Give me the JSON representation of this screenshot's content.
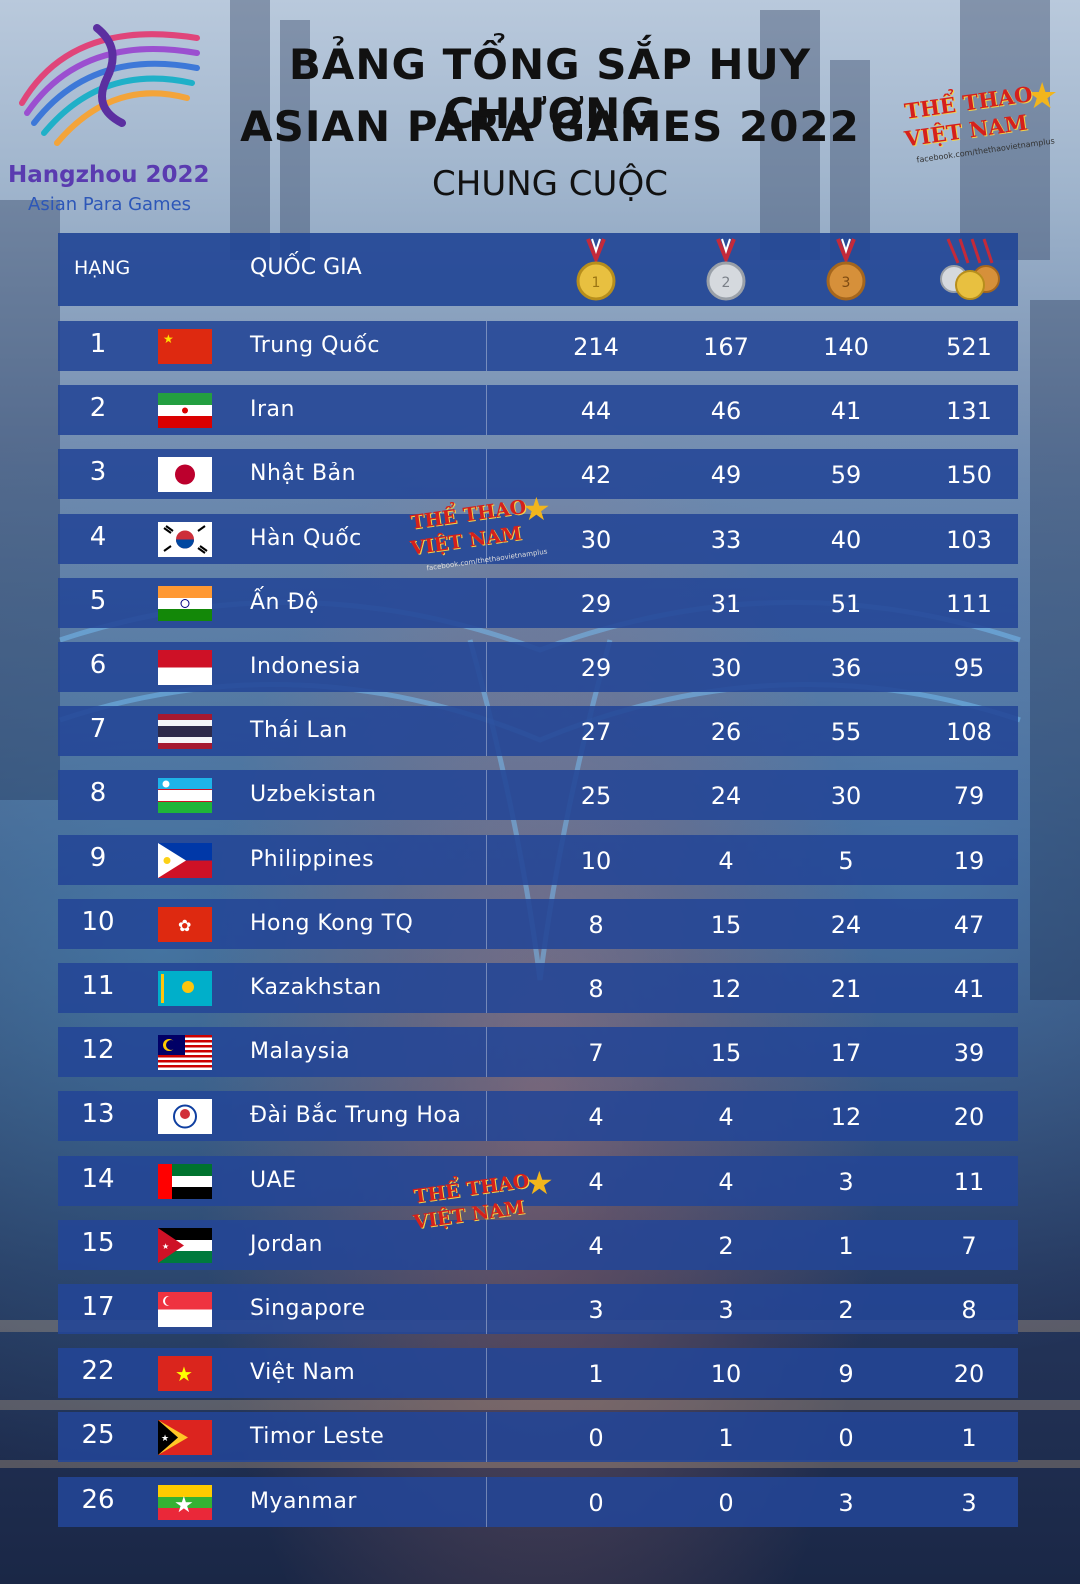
{
  "title": {
    "line1": "BẢNG TỔNG SẮP HUY CHƯƠNG",
    "line2": "ASIAN PARA GAMES 2022",
    "line3": "CHUNG CUỘC"
  },
  "logo": {
    "line1": "Hangzhou 2022",
    "line2": "Asian Para Games"
  },
  "brand": {
    "line1": "THỂ THAO",
    "line2": "VIỆT NAM",
    "line3": "facebook.com/thethaovietnamplus"
  },
  "table": {
    "headers": {
      "rank": "HẠNG",
      "country": "QUỐC GIA",
      "gold_icon": "gold-medal-icon",
      "silver_icon": "silver-medal-icon",
      "bronze_icon": "bronze-medal-icon",
      "total_icon": "all-medals-icon"
    },
    "rows": [
      {
        "rank": "1",
        "country": "Trung Quốc",
        "flag": "china-flag-icon",
        "gold": "214",
        "silver": "167",
        "bronze": "140",
        "total": "521"
      },
      {
        "rank": "2",
        "country": "Iran",
        "flag": "iran-flag-icon",
        "gold": "44",
        "silver": "46",
        "bronze": "41",
        "total": "131"
      },
      {
        "rank": "3",
        "country": "Nhật Bản",
        "flag": "japan-flag-icon",
        "gold": "42",
        "silver": "49",
        "bronze": "59",
        "total": "150"
      },
      {
        "rank": "4",
        "country": "Hàn Quốc",
        "flag": "korea-flag-icon",
        "gold": "30",
        "silver": "33",
        "bronze": "40",
        "total": "103"
      },
      {
        "rank": "5",
        "country": "Ấn Độ",
        "flag": "india-flag-icon",
        "gold": "29",
        "silver": "31",
        "bronze": "51",
        "total": "111"
      },
      {
        "rank": "6",
        "country": "Indonesia",
        "flag": "indonesia-flag-icon",
        "gold": "29",
        "silver": "30",
        "bronze": "36",
        "total": "95"
      },
      {
        "rank": "7",
        "country": "Thái Lan",
        "flag": "thailand-flag-icon",
        "gold": "27",
        "silver": "26",
        "bronze": "55",
        "total": "108"
      },
      {
        "rank": "8",
        "country": "Uzbekistan",
        "flag": "uzbekistan-flag-icon",
        "gold": "25",
        "silver": "24",
        "bronze": "30",
        "total": "79"
      },
      {
        "rank": "9",
        "country": "Philippines",
        "flag": "philippines-flag-icon",
        "gold": "10",
        "silver": "4",
        "bronze": "5",
        "total": "19"
      },
      {
        "rank": "10",
        "country": "Hong Kong TQ",
        "flag": "hongkong-flag-icon",
        "gold": "8",
        "silver": "15",
        "bronze": "24",
        "total": "47"
      },
      {
        "rank": "11",
        "country": "Kazakhstan",
        "flag": "kazakhstan-flag-icon",
        "gold": "8",
        "silver": "12",
        "bronze": "21",
        "total": "41"
      },
      {
        "rank": "12",
        "country": "Malaysia",
        "flag": "malaysia-flag-icon",
        "gold": "7",
        "silver": "15",
        "bronze": "17",
        "total": "39"
      },
      {
        "rank": "13",
        "country": "Đài Bắc Trung Hoa",
        "flag": "chinese-taipei-flag-icon",
        "gold": "4",
        "silver": "4",
        "bronze": "12",
        "total": "20"
      },
      {
        "rank": "14",
        "country": "UAE",
        "flag": "uae-flag-icon",
        "gold": "4",
        "silver": "4",
        "bronze": "3",
        "total": "11"
      },
      {
        "rank": "15",
        "country": "Jordan",
        "flag": "jordan-flag-icon",
        "gold": "4",
        "silver": "2",
        "bronze": "1",
        "total": "7"
      },
      {
        "rank": "17",
        "country": "Singapore",
        "flag": "singapore-flag-icon",
        "gold": "3",
        "silver": "3",
        "bronze": "2",
        "total": "8"
      },
      {
        "rank": "22",
        "country": "Việt Nam",
        "flag": "vietnam-flag-icon",
        "gold": "1",
        "silver": "10",
        "bronze": "9",
        "total": "20"
      },
      {
        "rank": "25",
        "country": "Timor Leste",
        "flag": "timor-leste-flag-icon",
        "gold": "0",
        "silver": "1",
        "bronze": "0",
        "total": "1"
      },
      {
        "rank": "26",
        "country": "Myanmar",
        "flag": "myanmar-flag-icon",
        "gold": "0",
        "silver": "0",
        "bronze": "3",
        "total": "3"
      }
    ]
  }
}
